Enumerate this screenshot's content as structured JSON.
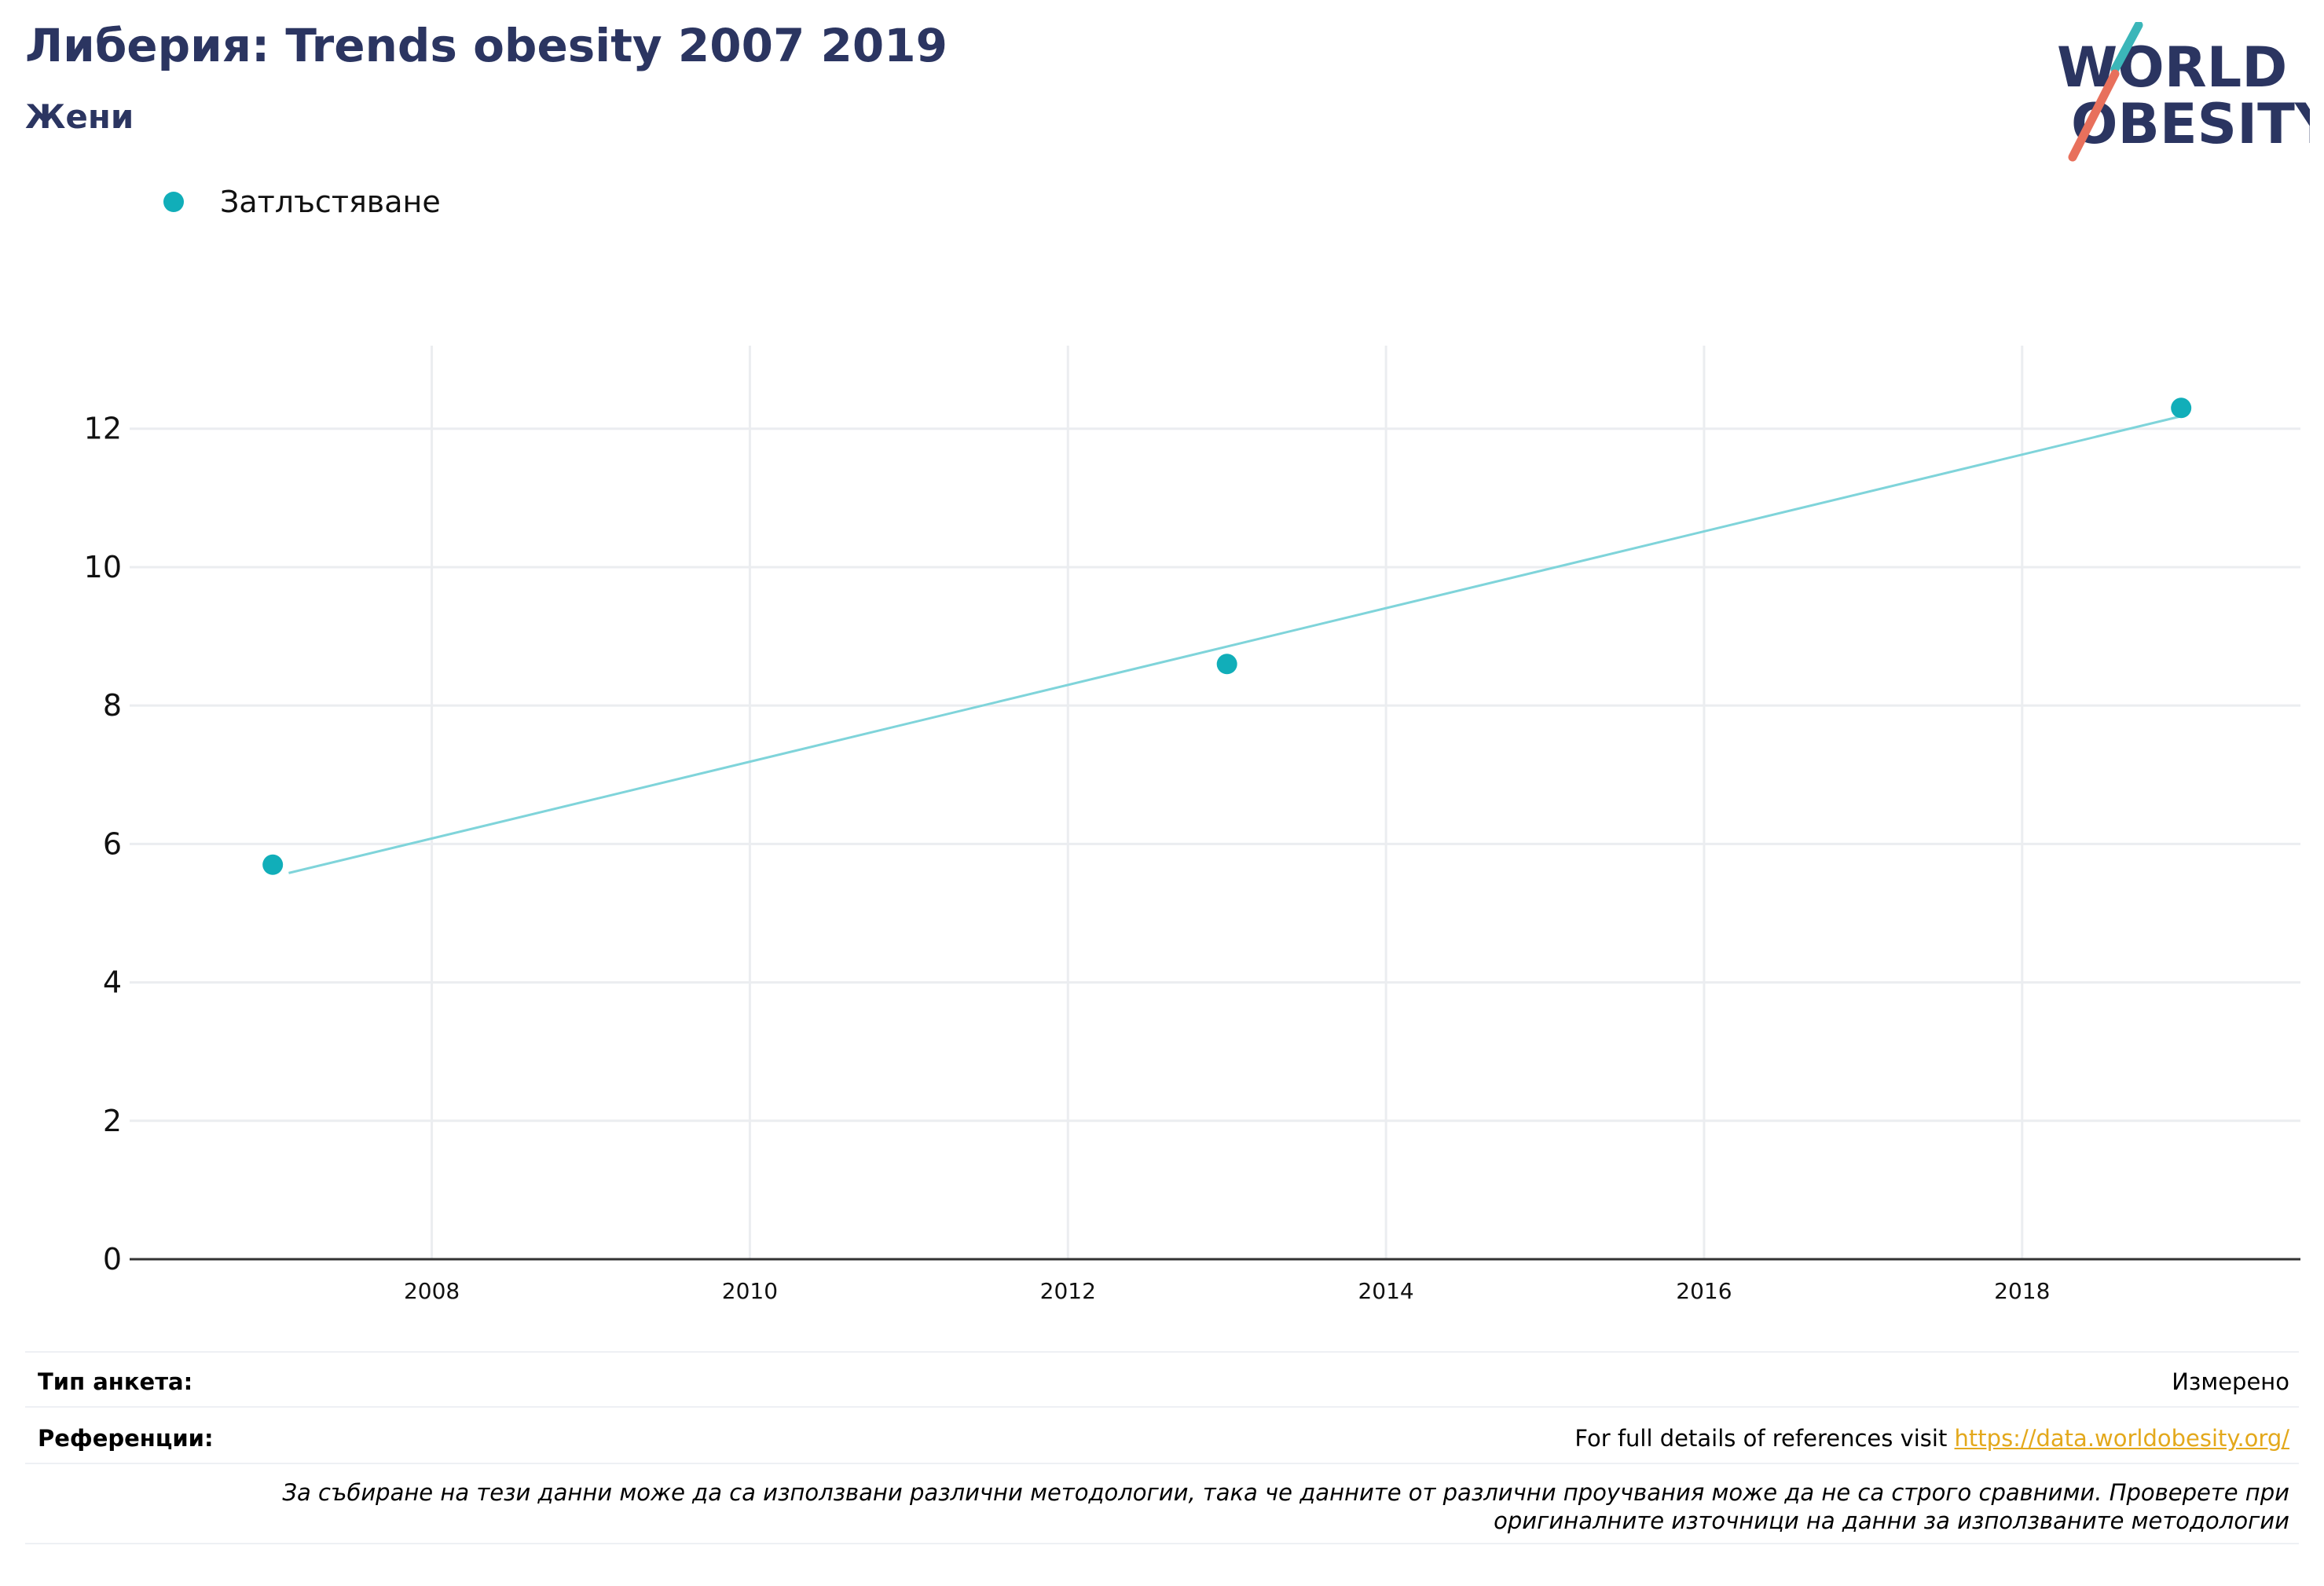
{
  "header": {
    "title": "Либерия: Trends obesity 2007 2019",
    "subtitle": "Жени"
  },
  "logo": {
    "line1": "WORLD",
    "line2": "OBESITY",
    "text_color": "#2b3561",
    "slash_top_color": "#3bb6b9",
    "slash_bottom_color": "#e8705c"
  },
  "legend": {
    "label": "Затлъстяване",
    "color": "#11aeb9"
  },
  "chart_data": {
    "type": "scatter",
    "series": [
      {
        "name": "Затлъстяване",
        "points": [
          {
            "x": 2007,
            "y": 5.7
          },
          {
            "x": 2013,
            "y": 8.6
          },
          {
            "x": 2019,
            "y": 12.3
          }
        ],
        "trendline": {
          "x_start": 2007.1,
          "y_start": 5.58,
          "x_end": 2019.0,
          "y_end": 12.18
        }
      }
    ],
    "xlim": [
      2006.1,
      2019.75
    ],
    "ylim": [
      0,
      13.2
    ],
    "x_ticks": [
      2008,
      2010,
      2012,
      2014,
      2016,
      2018
    ],
    "y_ticks": [
      0,
      2,
      4,
      6,
      8,
      10,
      12
    ],
    "grid": true,
    "colors": {
      "point": "#11aeb9",
      "trend": "#7fd4da",
      "grid": "#ebedf0",
      "axis": "#333333"
    }
  },
  "footer": {
    "survey_type_label": "Тип анкета:",
    "survey_type_value": "Измерено",
    "references_label": "Референции:",
    "references_text": "For full details of references visit ",
    "references_link": "https://data.worldobesity.org/",
    "note": "За събиране на тези данни може да са използвани различни методологии, така че данните от различни проучвания може да не са строго сравними. Проверете при оригиналните източници на данни за използваните методологии"
  }
}
